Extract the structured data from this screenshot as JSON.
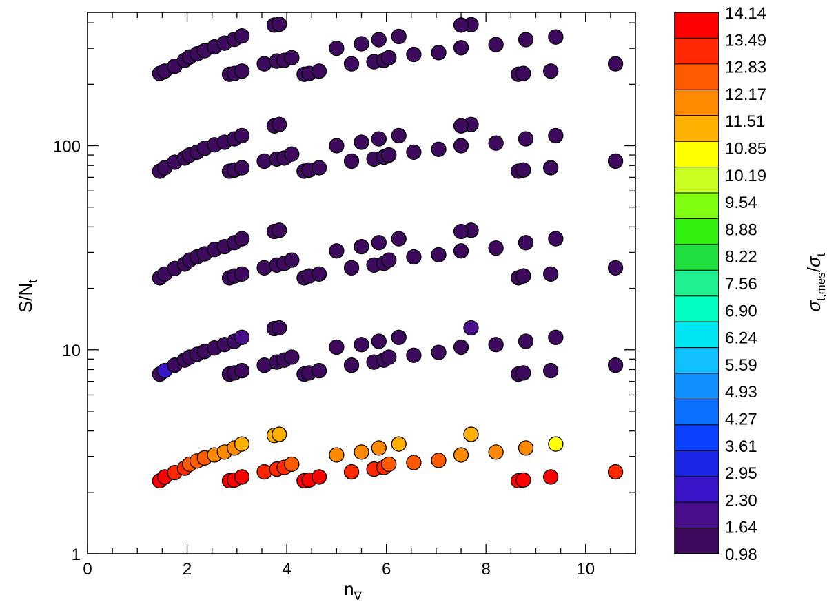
{
  "chart_data": {
    "type": "scatter",
    "title": "",
    "xlabel": {
      "main": "n",
      "sub": "∇"
    },
    "ylabel": {
      "main": "S/N",
      "sub": "t"
    },
    "colorbar_label": {
      "main": "σ",
      "sub": "t,mes",
      "sep": "/",
      "main2": "σ",
      "sub2": "t"
    },
    "xlim": [
      0,
      11
    ],
    "ylim": [
      1,
      450
    ],
    "yscale": "log",
    "x_ticks": [
      "0",
      "2",
      "4",
      "6",
      "8",
      "10"
    ],
    "y_ticks": [
      "1",
      "10",
      "100"
    ],
    "colorbar": {
      "range": [
        0.98,
        14.14
      ],
      "ticks": [
        "0.98",
        "1.64",
        "2.30",
        "2.95",
        "3.61",
        "4.27",
        "4.93",
        "5.59",
        "6.24",
        "6.90",
        "7.56",
        "8.22",
        "8.88",
        "9.54",
        "10.19",
        "10.85",
        "11.51",
        "12.17",
        "12.83",
        "13.49",
        "14.14"
      ],
      "colors": [
        "#3d0a5e",
        "#4a0f8a",
        "#3a14c8",
        "#1a28e6",
        "#0a40ff",
        "#0a70ff",
        "#1090ff",
        "#10c0ff",
        "#00e6f0",
        "#00ffc0",
        "#20f090",
        "#20e040",
        "#30f010",
        "#80ff10",
        "#c8ff20",
        "#ffff00",
        "#ffb000",
        "#ff8a00",
        "#ff5a00",
        "#ff2800",
        "#ff0000"
      ]
    },
    "marker": {
      "size": 10,
      "edgecolor": "#000000"
    },
    "series": [
      {
        "name": "",
        "x": [
          1.45,
          1.55,
          1.75,
          1.95,
          2.05,
          2.2,
          2.35,
          2.55,
          2.75,
          2.95,
          3.1,
          2.85,
          2.95,
          3.1,
          3.55,
          3.8,
          3.95,
          4.1,
          4.35,
          4.45,
          4.65,
          5.0,
          5.3,
          5.5,
          5.75,
          5.85,
          5.95,
          6.05,
          6.25,
          6.55,
          7.05,
          7.5,
          7.7,
          8.2,
          8.65,
          8.75,
          8.8,
          9.3,
          9.4,
          10.6,
          3.75,
          3.85,
          7.5
        ],
        "y": [
          226,
          232,
          245,
          262,
          272,
          282,
          292,
          305,
          318,
          332,
          345,
          224,
          226,
          232,
          252,
          260,
          262,
          270,
          224,
          226,
          232,
          300,
          252,
          316,
          258,
          331,
          262,
          270,
          343,
          280,
          286,
          302,
          392,
          313,
          224,
          226,
          331,
          232,
          341,
          252,
          390,
          394,
          390
        ],
        "color_value": [
          1.05,
          1.05,
          1.05,
          1.05,
          1.05,
          1.05,
          1.05,
          1.05,
          1.05,
          1.05,
          1.05,
          1.05,
          1.05,
          1.05,
          1.05,
          1.05,
          1.05,
          1.05,
          1.05,
          1.05,
          1.05,
          1.05,
          1.05,
          1.05,
          1.05,
          1.05,
          1.05,
          1.05,
          1.05,
          1.05,
          1.05,
          1.05,
          1.05,
          1.05,
          1.05,
          1.05,
          1.05,
          1.05,
          1.05,
          1.05,
          1.05,
          1.05,
          1.05
        ]
      },
      {
        "name": "",
        "x": [
          1.45,
          1.55,
          1.75,
          1.95,
          2.05,
          2.2,
          2.35,
          2.55,
          2.75,
          2.95,
          3.1,
          2.85,
          2.95,
          3.1,
          3.55,
          3.8,
          3.95,
          4.1,
          4.35,
          4.45,
          4.65,
          5.0,
          5.3,
          5.5,
          5.75,
          5.85,
          5.95,
          6.05,
          6.25,
          6.55,
          7.05,
          7.5,
          7.7,
          8.2,
          8.65,
          8.75,
          8.8,
          9.3,
          9.4,
          10.6,
          3.75,
          3.85,
          7.5
        ],
        "y": [
          75,
          78,
          83,
          87,
          90,
          93,
          97,
          101,
          104,
          108,
          112,
          75,
          76,
          78,
          84,
          86,
          87,
          91,
          75,
          76,
          78,
          100,
          84,
          104,
          86,
          108,
          88,
          90,
          112,
          93,
          96,
          100,
          127,
          103,
          75,
          76,
          108,
          78,
          112,
          84,
          125,
          127,
          125
        ],
        "color_value": [
          1.05,
          1.05,
          1.05,
          1.05,
          1.05,
          1.05,
          1.05,
          1.05,
          1.05,
          1.05,
          1.05,
          1.05,
          1.05,
          1.05,
          1.05,
          1.05,
          1.05,
          1.05,
          1.05,
          1.05,
          1.05,
          1.05,
          1.05,
          1.05,
          1.05,
          1.05,
          1.05,
          1.05,
          1.05,
          1.05,
          1.05,
          1.05,
          1.05,
          1.05,
          1.05,
          1.05,
          1.05,
          1.05,
          1.05,
          1.05,
          1.05,
          1.05,
          1.05
        ]
      },
      {
        "name": "",
        "x": [
          1.45,
          1.55,
          1.75,
          1.95,
          2.05,
          2.2,
          2.35,
          2.55,
          2.75,
          2.95,
          3.1,
          2.85,
          2.95,
          3.1,
          3.55,
          3.8,
          3.95,
          4.1,
          4.35,
          4.45,
          4.65,
          5.0,
          5.3,
          5.5,
          5.75,
          5.85,
          5.95,
          6.05,
          6.25,
          6.55,
          7.05,
          7.5,
          7.7,
          8.2,
          8.65,
          8.75,
          8.8,
          9.3,
          9.4,
          10.6,
          3.75,
          3.85,
          7.5
        ],
        "y": [
          22.5,
          23.5,
          25,
          26.3,
          27.5,
          28.5,
          29.5,
          31,
          32,
          33.5,
          35,
          22.5,
          23,
          23.5,
          25.2,
          26,
          26.5,
          27.5,
          22.5,
          23,
          23.5,
          30.5,
          25.2,
          32,
          26,
          33.5,
          26.5,
          27.5,
          35,
          28.5,
          29.2,
          30.5,
          38.5,
          31.5,
          22.5,
          23,
          33.5,
          23.5,
          35,
          25.2,
          38,
          38.5,
          38
        ]
      },
      {
        "name": "",
        "x": [
          1.45,
          1.55,
          1.75,
          1.95,
          2.05,
          2.2,
          2.35,
          2.55,
          2.75,
          2.95,
          3.1,
          2.85,
          2.95,
          3.1,
          3.55,
          3.8,
          3.95,
          4.1,
          4.35,
          4.45,
          4.65,
          5.0,
          5.3,
          5.5,
          5.75,
          5.85,
          5.95,
          6.05,
          6.25,
          6.55,
          7.05,
          7.5,
          7.7,
          8.2,
          8.65,
          8.75,
          8.8,
          9.3,
          9.4,
          10.6,
          3.75,
          3.85
        ],
        "y": [
          7.6,
          7.9,
          8.4,
          8.9,
          9.2,
          9.5,
          9.8,
          10.2,
          10.6,
          11.0,
          11.5,
          7.6,
          7.7,
          7.9,
          8.4,
          8.7,
          8.9,
          9.2,
          7.6,
          7.7,
          7.9,
          10.3,
          8.4,
          10.6,
          8.7,
          11.0,
          8.9,
          9.2,
          11.5,
          9.4,
          9.7,
          10.3,
          12.8,
          10.6,
          7.6,
          7.7,
          11.0,
          7.9,
          11.5,
          8.4,
          12.7,
          12.8
        ]
      },
      {
        "name": "",
        "x": [
          1.45,
          1.55,
          1.75,
          1.95,
          2.05,
          2.2,
          2.35,
          2.55,
          2.75,
          2.95,
          3.1,
          2.85,
          2.95,
          3.1,
          3.55,
          3.8,
          3.95,
          4.1,
          4.35,
          4.45,
          4.65,
          5.0,
          5.3,
          5.5,
          5.75,
          5.85,
          5.95,
          6.05,
          6.25,
          6.55,
          7.05,
          7.5,
          7.7,
          8.2,
          8.65,
          8.75,
          8.8,
          9.3,
          9.4,
          10.6,
          3.75,
          3.85
        ],
        "y": [
          2.28,
          2.38,
          2.5,
          2.63,
          2.75,
          2.85,
          2.95,
          3.05,
          3.15,
          3.3,
          3.45,
          2.28,
          2.3,
          2.38,
          2.52,
          2.6,
          2.65,
          2.75,
          2.28,
          2.3,
          2.38,
          3.05,
          2.52,
          3.15,
          2.6,
          3.3,
          2.65,
          2.75,
          3.45,
          2.8,
          2.87,
          3.05,
          3.85,
          3.15,
          2.28,
          2.3,
          3.3,
          2.38,
          3.45,
          2.52,
          3.8,
          3.85
        ]
      }
    ]
  }
}
